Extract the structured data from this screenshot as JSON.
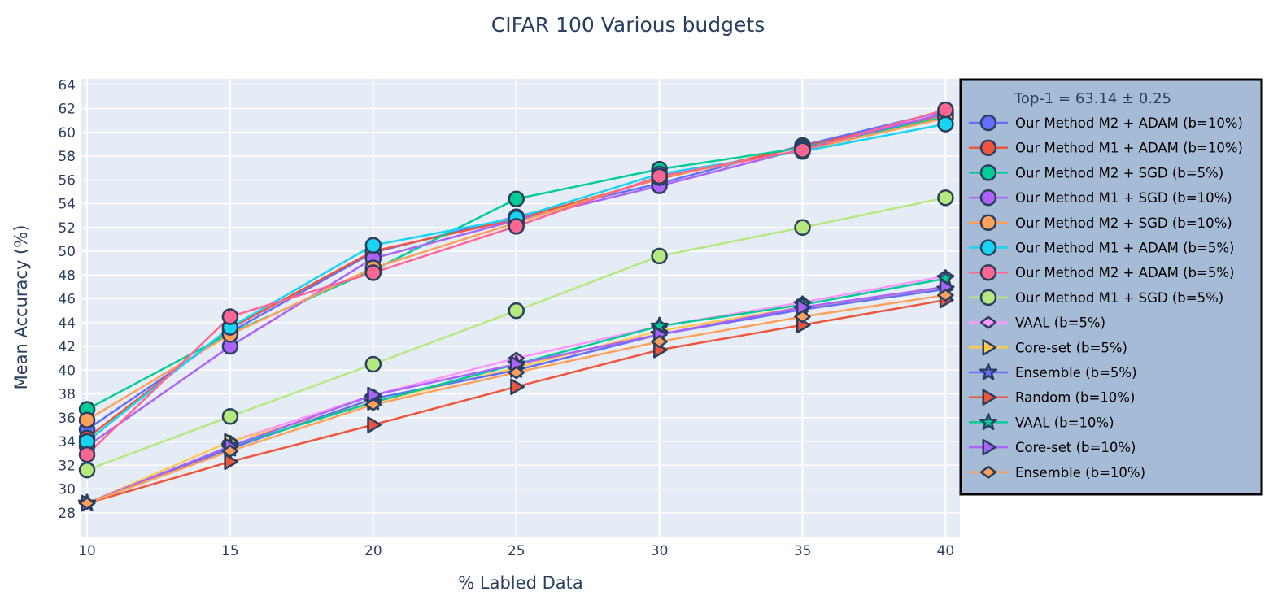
{
  "chart_data": {
    "type": "line",
    "title": "CIFAR 100 Various budgets",
    "xlabel": "% Labled Data",
    "ylabel": "Mean Accuracy (%)",
    "x": [
      10,
      15,
      20,
      25,
      30,
      35,
      40
    ],
    "xticks": [
      10,
      15,
      20,
      25,
      30,
      35,
      40
    ],
    "yticks": [
      28,
      30,
      32,
      34,
      36,
      38,
      40,
      42,
      44,
      46,
      48,
      50,
      52,
      54,
      56,
      58,
      60,
      62,
      64
    ],
    "xlim": [
      9.8,
      40.5
    ],
    "ylim": [
      26,
      64.5
    ],
    "grid": true,
    "legend_position": "right",
    "legend_title": "Top-1 = 63.14 ± 0.25",
    "background": "#e5ecf6",
    "legend_background": "#a6bbd6",
    "series": [
      {
        "name": "Our Method M2 + ADAM (b=10%)",
        "color": "#636efa",
        "marker": "circle",
        "values": [
          35.0,
          43.2,
          49.9,
          52.9,
          55.7,
          58.9,
          61.8
        ]
      },
      {
        "name": "Our Method M1 + ADAM (b=10%)",
        "color": "#EF553B",
        "marker": "circle",
        "values": [
          34.3,
          43.5,
          50.0,
          52.7,
          56.1,
          58.8,
          61.5
        ]
      },
      {
        "name": "Our Method M2 + SGD (b=5%)",
        "color": "#00cc96",
        "marker": "circle",
        "values": [
          36.7,
          43.1,
          48.4,
          54.4,
          56.9,
          58.7,
          61.3
        ]
      },
      {
        "name": "Our Method M1 + SGD (b=10%)",
        "color": "#ab63fa",
        "marker": "circle",
        "values": [
          33.6,
          42.0,
          49.4,
          52.6,
          55.5,
          58.6,
          61.6
        ]
      },
      {
        "name": "Our Method M2 + SGD (b=10%)",
        "color": "#FFA15A",
        "marker": "circle",
        "values": [
          35.8,
          43.0,
          48.6,
          52.4,
          56.2,
          58.5,
          61.2
        ]
      },
      {
        "name": "Our Method M1 + ADAM (b=5%)",
        "color": "#19d3f3",
        "marker": "circle",
        "values": [
          34.0,
          43.6,
          50.5,
          52.8,
          56.5,
          58.4,
          60.7
        ]
      },
      {
        "name": "Our Method M2 + ADAM (b=5%)",
        "color": "#FF6692",
        "marker": "circle",
        "values": [
          32.9,
          44.5,
          48.2,
          52.1,
          56.3,
          58.5,
          61.9
        ]
      },
      {
        "name": "Our Method M1 + SGD (b=5%)",
        "color": "#B6E880",
        "marker": "circle",
        "values": [
          31.6,
          36.1,
          40.5,
          45.0,
          49.6,
          52.0,
          54.5
        ]
      },
      {
        "name": "VAAL (b=5%)",
        "color": "#FF97FF",
        "marker": "diamond",
        "values": [
          28.8,
          34.0,
          37.9,
          41.0,
          43.7,
          45.7,
          47.9
        ]
      },
      {
        "name": "Core-set (b=5%)",
        "color": "#FECB52",
        "marker": "triangle-right",
        "values": [
          28.8,
          34.0,
          37.3,
          40.2,
          43.3,
          45.3,
          46.8
        ]
      },
      {
        "name": "Ensemble (b=5%)",
        "color": "#636efa",
        "marker": "star",
        "values": [
          28.8,
          33.4,
          37.6,
          40.0,
          43.0,
          45.1,
          46.8
        ]
      },
      {
        "name": "Random (b=10%)",
        "color": "#EF553B",
        "marker": "triangle-right",
        "values": [
          28.8,
          32.3,
          35.4,
          38.6,
          41.7,
          43.8,
          45.9
        ]
      },
      {
        "name": "VAAL (b=10%)",
        "color": "#00cc96",
        "marker": "star",
        "values": [
          28.8,
          33.6,
          37.3,
          40.5,
          43.7,
          45.5,
          47.7
        ]
      },
      {
        "name": "Core-set (b=10%)",
        "color": "#ab63fa",
        "marker": "triangle-right",
        "values": [
          28.8,
          33.6,
          37.9,
          40.5,
          43.0,
          45.3,
          47.0
        ]
      },
      {
        "name": "Ensemble (b=10%)",
        "color": "#FFA15A",
        "marker": "diamond",
        "values": [
          28.8,
          33.2,
          37.1,
          39.8,
          42.4,
          44.5,
          46.3
        ]
      }
    ]
  }
}
